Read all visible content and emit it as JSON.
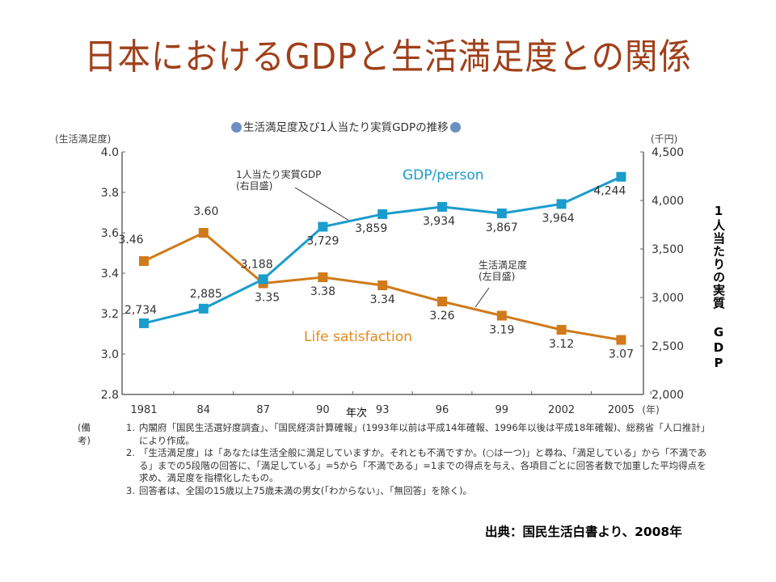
{
  "slide": {
    "title": "日本におけるGDPと生活満足度との関係",
    "source": "出典：国民生活白書より、2008年",
    "right_vertical_label": "1人当たりの実質 GDP",
    "x_axis_title": "年次"
  },
  "chart_data": {
    "type": "line",
    "title": "生活満足度及び1人当たり実質GDPの推移",
    "categories": [
      "1981",
      "84",
      "87",
      "90",
      "93",
      "96",
      "99",
      "2002",
      "2005"
    ],
    "x_unit_label": "(年)",
    "left_axis": {
      "unit_label": "(生活満足度)",
      "range": [
        2.8,
        4.0
      ],
      "ticks": [
        "4.0",
        "3.8",
        "3.6",
        "3.4",
        "3.2",
        "3.0",
        "2.8"
      ]
    },
    "right_axis": {
      "unit_label": "(千円)",
      "range": [
        2000,
        4500
      ],
      "ticks": [
        "4,500",
        "4,000",
        "3,500",
        "3,000",
        "2,500",
        "2,000"
      ]
    },
    "series": [
      {
        "name": "Life satisfaction",
        "jp_name": "生活満足度 (左目盛)",
        "axis": "left",
        "color": "#d07a1a",
        "values": [
          3.46,
          3.6,
          3.35,
          3.38,
          3.34,
          3.26,
          3.19,
          3.12,
          3.07
        ],
        "labels": [
          "3.46",
          "3.60",
          "3.35",
          "3.38",
          "3.34",
          "3.26",
          "3.19",
          "3.12",
          "3.07"
        ]
      },
      {
        "name": "GDP/person",
        "jp_name": "1人当たり実質GDP (右目盛)",
        "axis": "right",
        "color": "#1a9ccc",
        "values": [
          2734,
          2885,
          3188,
          3729,
          3859,
          3934,
          3867,
          3964,
          4244
        ],
        "labels": [
          "2,734",
          "2,885",
          "3,188",
          "3,729",
          "3,859",
          "3,934",
          "3,867",
          "3,964",
          "4,244"
        ]
      }
    ],
    "annotations": {
      "gdp_callout_line1": "1人当たり実質GDP",
      "gdp_callout_line2": "(右目盛)",
      "sat_callout_line1": "生活満足度",
      "sat_callout_line2": "(左目盛)",
      "gdp_series_label": "GDP/person",
      "sat_series_label": "Life satisfaction"
    },
    "grid": false,
    "legend": "none"
  },
  "notes": {
    "label": "(備考)",
    "items": [
      {
        "num": "1.",
        "text": "内閣府「国民生活選好度調査」、「国民経済計算確報」(1993年以前は平成14年確報、1996年以後は平成18年確報)、総務省「人口推計」により作成。"
      },
      {
        "num": "2.",
        "text": "「生活満足度」は「あなたは生活全般に満足していますか。それとも不満ですか。(○は一つ)」と尋ね、「満足している」から「不満である」までの5段階の回答に、「満足している」=5から「不満である」=1までの得点を与え、各項目ごとに回答者数で加重した平均得点を求め、満足度を指標化したもの。"
      },
      {
        "num": "3.",
        "text": "回答者は、全国の15歳以上75歳未満の男女(「わからない」、「無回答」を除く)。"
      }
    ]
  }
}
